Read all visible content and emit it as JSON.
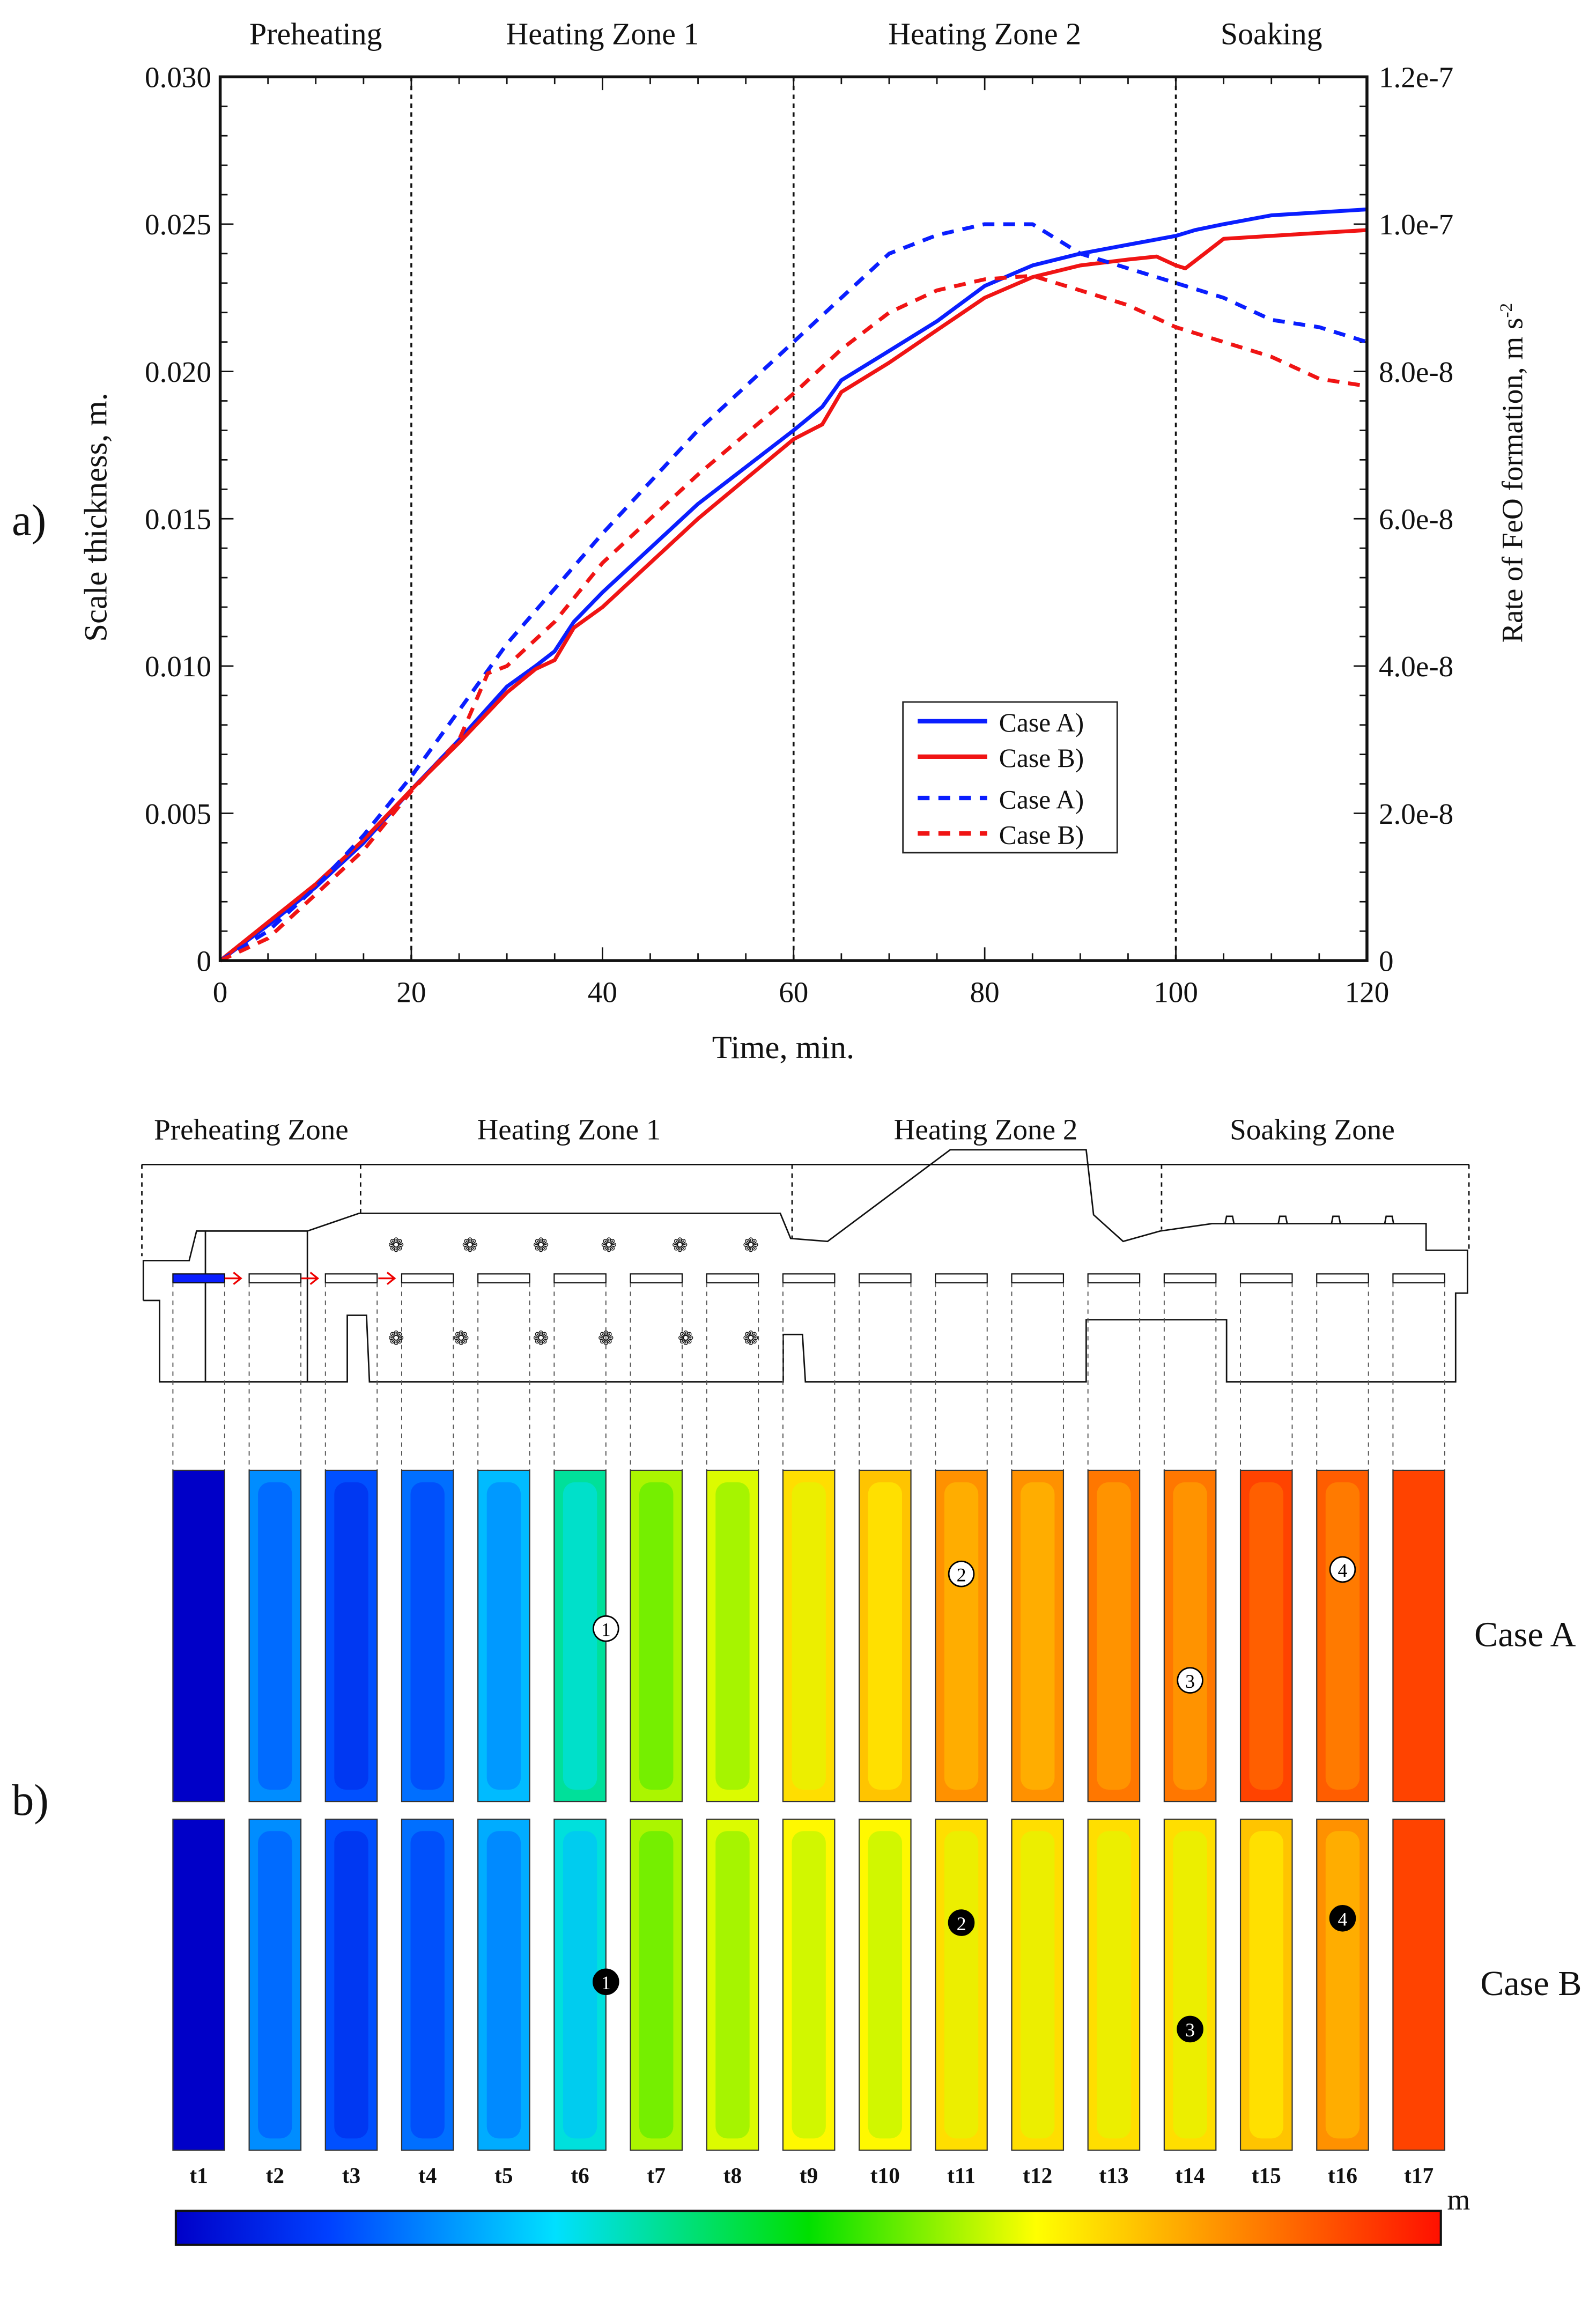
{
  "chart_data": [
    {
      "type": "line",
      "panel_label": "a)",
      "xlabel": "Time, min.",
      "ylabel": "Scale thickness, m.",
      "y2label": "Rate of FeO formation, m s",
      "y2label_sup": "-2",
      "xlim": [
        0,
        120
      ],
      "ylim": [
        0,
        0.03
      ],
      "y2lim": [
        0,
        1.2e-07
      ],
      "xticks": [
        "0",
        "20",
        "40",
        "60",
        "80",
        "100",
        "120"
      ],
      "yticks": [
        "0",
        "0.005",
        "0.010",
        "0.015",
        "0.020",
        "0.025",
        "0.030"
      ],
      "y2ticks": [
        "0",
        "2.0e-8",
        "4.0e-8",
        "6.0e-8",
        "8.0e-8",
        "1.0e-7",
        "1.2e-7"
      ],
      "zone_labels": [
        "Preheating",
        "Heating Zone 1",
        "Heating Zone 2",
        "Soaking"
      ],
      "zone_boundaries": [
        20,
        60,
        100
      ],
      "legend_position": "center-right",
      "series": [
        {
          "name": "Case A)",
          "axis": "left",
          "style": "solid",
          "color": "#0a1eff",
          "x": [
            0,
            5,
            10,
            15,
            20,
            25,
            30,
            33,
            35,
            37,
            40,
            50,
            60,
            63,
            65,
            70,
            75,
            80,
            85,
            90,
            95,
            100,
            102,
            105,
            110,
            115,
            120
          ],
          "y": [
            0,
            0.0012,
            0.0025,
            0.004,
            0.0058,
            0.0075,
            0.0093,
            0.01,
            0.0105,
            0.0115,
            0.0125,
            0.0155,
            0.018,
            0.0188,
            0.0197,
            0.0207,
            0.0217,
            0.0229,
            0.0236,
            0.024,
            0.0243,
            0.0246,
            0.0248,
            0.025,
            0.0253,
            0.0254,
            0.0255
          ]
        },
        {
          "name": "Case B)",
          "axis": "left",
          "style": "solid",
          "color": "#f01414",
          "x": [
            0,
            5,
            10,
            15,
            20,
            25,
            30,
            33,
            35,
            37,
            40,
            50,
            60,
            63,
            65,
            70,
            75,
            80,
            85,
            90,
            95,
            98,
            100,
            101,
            103,
            105,
            110,
            115,
            120
          ],
          "y": [
            0,
            0.0013,
            0.0026,
            0.0041,
            0.0058,
            0.0074,
            0.0091,
            0.0099,
            0.0102,
            0.0113,
            0.012,
            0.015,
            0.0177,
            0.0182,
            0.0193,
            0.0203,
            0.0214,
            0.0225,
            0.0232,
            0.0236,
            0.0238,
            0.0239,
            0.0236,
            0.0235,
            0.024,
            0.0245,
            0.0246,
            0.0247,
            0.0248
          ]
        },
        {
          "name": "Case A)",
          "axis": "right",
          "style": "dashed",
          "color": "#0a1eff",
          "x": [
            0,
            5,
            10,
            15,
            20,
            25,
            30,
            40,
            50,
            60,
            65,
            70,
            75,
            80,
            85,
            90,
            95,
            100,
            105,
            110,
            115,
            120
          ],
          "y": [
            0,
            4e-09,
            1e-08,
            1.7e-08,
            2.5e-08,
            3.4e-08,
            4.3e-08,
            5.8e-08,
            7.2e-08,
            8.4e-08,
            9e-08,
            9.6e-08,
            9.85e-08,
            1e-07,
            1e-07,
            9.6e-08,
            9.4e-08,
            9.2e-08,
            9e-08,
            8.7e-08,
            8.6e-08,
            8.4e-08
          ]
        },
        {
          "name": "Case B)",
          "axis": "right",
          "style": "dashed",
          "color": "#f01414",
          "x": [
            0,
            5,
            10,
            15,
            20,
            25,
            28,
            30,
            35,
            40,
            50,
            60,
            65,
            70,
            75,
            80,
            85,
            90,
            95,
            100,
            105,
            110,
            115,
            120
          ],
          "y": [
            0,
            3e-09,
            9e-09,
            1.5e-08,
            2.3e-08,
            3e-08,
            3.9e-08,
            4e-08,
            4.6e-08,
            5.4e-08,
            6.6e-08,
            7.7e-08,
            8.3e-08,
            8.8e-08,
            9.1e-08,
            9.25e-08,
            9.3e-08,
            9.1e-08,
            8.9e-08,
            8.6e-08,
            8.4e-08,
            8.2e-08,
            7.9e-08,
            7.8e-08
          ]
        }
      ]
    },
    {
      "type": "heatmap",
      "panel_label": "b)",
      "zone_labels": [
        "Preheating Zone",
        "Heating Zone 1",
        "Heating Zone 2",
        "Soaking Zone"
      ],
      "strip_labels": [
        "t1",
        "t2",
        "t3",
        "t4",
        "t5",
        "t6",
        "t7",
        "t8",
        "t9",
        "t10",
        "t11",
        "t12",
        "t13",
        "t14",
        "t15",
        "t16",
        "t17"
      ],
      "rows": [
        {
          "name": "Case A",
          "marker_style": "open",
          "values": [
            0,
            0.006,
            0.004,
            0.005,
            0.0075,
            0.011,
            0.018,
            0.019,
            0.021,
            0.022,
            0.024,
            0.024,
            0.025,
            0.025,
            0.027,
            0.026,
            0.027
          ],
          "markers": [
            {
              "label": "1",
              "strip": 6
            },
            {
              "label": "2",
              "strip": 11
            },
            {
              "label": "3",
              "strip": 14
            },
            {
              "label": "4",
              "strip": 16
            }
          ]
        },
        {
          "name": "Case B",
          "marker_style": "filled",
          "values": [
            0,
            0.006,
            0.004,
            0.005,
            0.007,
            0.0095,
            0.018,
            0.019,
            0.02,
            0.02,
            0.021,
            0.021,
            0.021,
            0.021,
            0.022,
            0.024,
            0.027
          ],
          "markers": [
            {
              "label": "1",
              "strip": 6
            },
            {
              "label": "2",
              "strip": 11
            },
            {
              "label": "3",
              "strip": 14
            },
            {
              "label": "4",
              "strip": 16
            }
          ]
        }
      ],
      "colorbar": {
        "unit": "m",
        "range": [
          0,
          0.029
        ],
        "ticks": [
          "0",
          "0.0027",
          "0.0055",
          "0.0083",
          "0.011",
          "0.013",
          "0.016",
          "0.019",
          "0.022",
          "0.025",
          "0.029"
        ]
      }
    }
  ]
}
